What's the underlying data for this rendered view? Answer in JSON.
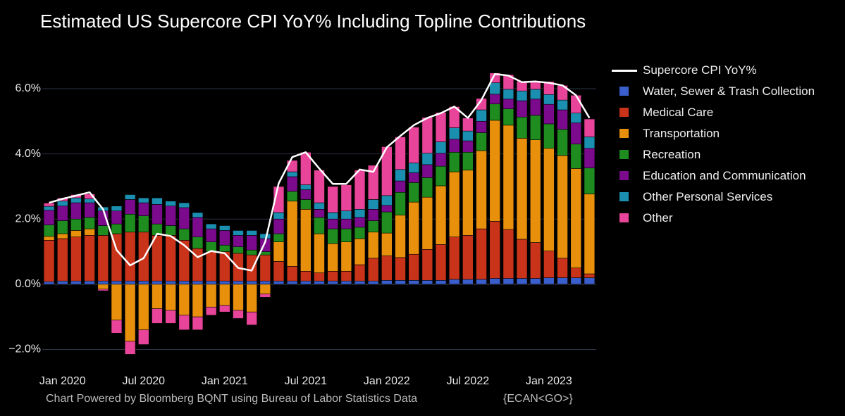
{
  "chart_data": {
    "type": "bar",
    "title": "Estimated US Supercore CPI YoY% Including Topline Contributions",
    "source": "Chart Powered by Bloomberg BQNT using Bureau of Labor Statistics Data",
    "source_code": "{ECAN<GO>}",
    "x": [
      "2019-12",
      "2020-01",
      "2020-02",
      "2020-03",
      "2020-04",
      "2020-05",
      "2020-06",
      "2020-07",
      "2020-08",
      "2020-09",
      "2020-10",
      "2020-11",
      "2020-12",
      "2021-01",
      "2021-02",
      "2021-03",
      "2021-04",
      "2021-05",
      "2021-06",
      "2021-07",
      "2021-08",
      "2021-09",
      "2021-10",
      "2021-11",
      "2021-12",
      "2022-01",
      "2022-02",
      "2022-03",
      "2022-04",
      "2022-05",
      "2022-06",
      "2022-07",
      "2022-08",
      "2022-09",
      "2022-10",
      "2022-11",
      "2022-12",
      "2023-01",
      "2023-02",
      "2023-03",
      "2023-04"
    ],
    "xticks": [
      {
        "value": "2020-01",
        "label": "Jan 2020"
      },
      {
        "value": "2020-07",
        "label": "Jul 2020"
      },
      {
        "value": "2021-01",
        "label": "Jan 2021"
      },
      {
        "value": "2021-07",
        "label": "Jul 2021"
      },
      {
        "value": "2022-01",
        "label": "Jan 2022"
      },
      {
        "value": "2022-07",
        "label": "Jul 2022"
      },
      {
        "value": "2023-01",
        "label": "Jan 2023"
      }
    ],
    "ylim": [
      -2.4,
      7.1
    ],
    "yticks": [
      {
        "value": -2,
        "label": "−2.0%"
      },
      {
        "value": 0,
        "label": "0.0%"
      },
      {
        "value": 2,
        "label": "2.0%"
      },
      {
        "value": 4,
        "label": "4.0%"
      },
      {
        "value": 6,
        "label": "6.0%"
      }
    ],
    "grid": true,
    "legend": "right",
    "series": [
      {
        "name": "Supercore CPI YoY%",
        "type": "line",
        "color": "#ffffff",
        "values": [
          2.5,
          2.62,
          2.72,
          2.82,
          2.3,
          1.05,
          0.58,
          0.8,
          1.55,
          1.48,
          1.2,
          0.83,
          1.02,
          0.95,
          0.5,
          0.42,
          1.3,
          3.1,
          3.9,
          4.05,
          3.55,
          3.08,
          3.08,
          3.52,
          3.45,
          4.2,
          4.55,
          4.88,
          5.1,
          5.25,
          5.45,
          5.1,
          5.65,
          6.45,
          6.4,
          6.2,
          6.22,
          6.18,
          6.1,
          5.8,
          5.1
        ]
      },
      {
        "name": "Water, Sewer & Trash Collection",
        "color": "#3a5fcd",
        "values": [
          0.08,
          0.1,
          0.1,
          0.1,
          0.1,
          0.1,
          0.1,
          0.1,
          0.1,
          0.1,
          0.1,
          0.1,
          0.1,
          0.1,
          0.1,
          0.1,
          0.1,
          0.1,
          0.1,
          0.1,
          0.1,
          0.1,
          0.1,
          0.1,
          0.1,
          0.12,
          0.12,
          0.12,
          0.12,
          0.12,
          0.15,
          0.15,
          0.15,
          0.18,
          0.18,
          0.18,
          0.18,
          0.2,
          0.2,
          0.2,
          0.2
        ]
      },
      {
        "name": "Medical Care",
        "color": "#c8331a",
        "values": [
          1.27,
          1.3,
          1.35,
          1.4,
          1.4,
          1.45,
          1.5,
          1.5,
          1.4,
          1.4,
          1.25,
          1.0,
          0.9,
          0.9,
          0.85,
          0.8,
          0.8,
          0.6,
          0.45,
          0.3,
          0.25,
          0.3,
          0.3,
          0.5,
          0.7,
          0.75,
          0.7,
          0.8,
          0.95,
          1.1,
          1.3,
          1.35,
          1.55,
          1.75,
          1.5,
          1.2,
          1.1,
          0.82,
          0.6,
          0.3,
          0.12
        ]
      },
      {
        "name": "Transportation",
        "color": "#e8900c",
        "values": [
          0.12,
          0.15,
          0.2,
          0.2,
          -0.15,
          -1.1,
          -1.75,
          -1.4,
          -0.75,
          -0.8,
          -0.95,
          -1.0,
          -0.7,
          -0.65,
          -0.8,
          -0.85,
          -0.3,
          0.6,
          2.0,
          1.9,
          1.2,
          0.85,
          0.9,
          0.8,
          0.8,
          0.7,
          1.3,
          1.6,
          1.6,
          1.8,
          2.0,
          2.0,
          2.4,
          3.1,
          3.2,
          3.1,
          3.15,
          3.15,
          3.15,
          3.05,
          2.45
        ]
      },
      {
        "name": "Recreation",
        "color": "#1e8c1e",
        "values": [
          0.35,
          0.4,
          0.35,
          0.35,
          0.3,
          0.3,
          0.55,
          0.5,
          0.35,
          0.3,
          0.35,
          0.35,
          0.3,
          0.2,
          0.2,
          0.15,
          0.1,
          0.25,
          0.3,
          0.3,
          0.5,
          0.45,
          0.4,
          0.35,
          0.35,
          0.65,
          0.7,
          0.6,
          0.6,
          0.6,
          0.6,
          0.55,
          0.55,
          0.5,
          0.5,
          0.65,
          0.75,
          0.75,
          0.8,
          0.75,
          0.8
        ]
      },
      {
        "name": "Education and Communication",
        "color": "#7b0a8c",
        "values": [
          0.45,
          0.45,
          0.5,
          0.45,
          0.45,
          0.4,
          0.45,
          0.4,
          0.6,
          0.6,
          0.65,
          0.6,
          0.4,
          0.45,
          0.35,
          0.45,
          0.4,
          0.45,
          0.45,
          0.3,
          0.25,
          0.3,
          0.3,
          0.3,
          0.35,
          0.2,
          0.35,
          0.3,
          0.4,
          0.4,
          0.4,
          0.35,
          0.35,
          0.3,
          0.3,
          0.5,
          0.5,
          0.6,
          0.6,
          0.65,
          0.6
        ]
      },
      {
        "name": "Other Personal Services",
        "color": "#1a8fb0",
        "values": [
          0.12,
          0.15,
          0.15,
          0.12,
          0.12,
          0.15,
          0.15,
          0.15,
          0.2,
          0.15,
          0.15,
          0.15,
          0.15,
          0.15,
          0.15,
          0.15,
          0.15,
          0.2,
          0.15,
          0.15,
          0.2,
          0.2,
          0.25,
          0.25,
          0.3,
          0.3,
          0.35,
          0.3,
          0.35,
          0.35,
          0.35,
          0.3,
          0.35,
          0.35,
          0.3,
          0.3,
          0.3,
          0.3,
          0.3,
          0.3,
          0.35
        ]
      },
      {
        "name": "Other",
        "color": "#e8449a",
        "values": [
          0.1,
          0.1,
          0.1,
          0.15,
          -0.05,
          -0.4,
          -0.4,
          -0.45,
          -0.45,
          -0.4,
          -0.45,
          -0.4,
          -0.25,
          -0.2,
          -0.25,
          -0.4,
          -0.1,
          0.8,
          0.35,
          1.0,
          1.0,
          0.8,
          0.8,
          1.2,
          1.05,
          1.5,
          1.0,
          1.1,
          1.1,
          0.9,
          0.65,
          0.4,
          0.35,
          0.3,
          0.45,
          0.3,
          0.25,
          0.4,
          0.45,
          0.55,
          0.55
        ]
      }
    ]
  }
}
